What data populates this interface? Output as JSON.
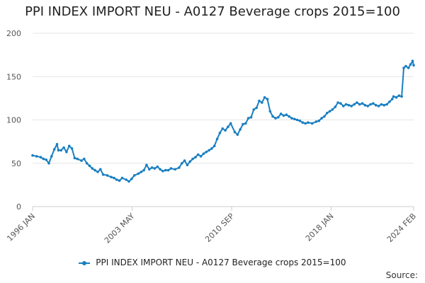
{
  "chart_data": {
    "type": "line",
    "title": "PPI INDEX IMPORT NEU - A0127 Beverage crops 2015=100",
    "xlabel": "",
    "ylabel": "",
    "ylim": [
      0,
      200
    ],
    "yticks": [
      0,
      50,
      100,
      150,
      200
    ],
    "x_start": "1996 JAN",
    "x_end": "2024 FEB",
    "xticks": [
      {
        "label": "1996 JAN",
        "t": 1996.0
      },
      {
        "label": "2003 MAY",
        "t": 2003.33
      },
      {
        "label": "2010 SEP",
        "t": 2010.67
      },
      {
        "label": "2018 JAN",
        "t": 2018.0
      },
      {
        "label": "2024 FEB",
        "t": 2024.08
      }
    ],
    "grid": true,
    "legend_position": "bottom",
    "series": [
      {
        "name": "PPI INDEX IMPORT NEU - A0127 Beverage crops 2015=100",
        "color": "#1a7fc1",
        "points": [
          [
            1996.0,
            59
          ],
          [
            1996.3,
            58
          ],
          [
            1996.6,
            57
          ],
          [
            1996.8,
            55
          ],
          [
            1997.0,
            54
          ],
          [
            1997.2,
            50
          ],
          [
            1997.4,
            58
          ],
          [
            1997.6,
            66
          ],
          [
            1997.8,
            72
          ],
          [
            1997.9,
            65
          ],
          [
            1998.1,
            65
          ],
          [
            1998.3,
            68
          ],
          [
            1998.5,
            63
          ],
          [
            1998.7,
            70
          ],
          [
            1998.9,
            67
          ],
          [
            1999.1,
            56
          ],
          [
            1999.3,
            55
          ],
          [
            1999.6,
            53
          ],
          [
            1999.8,
            55
          ],
          [
            2000.0,
            50
          ],
          [
            2000.2,
            47
          ],
          [
            2000.4,
            44
          ],
          [
            2000.6,
            42
          ],
          [
            2000.8,
            40
          ],
          [
            2001.0,
            43
          ],
          [
            2001.2,
            37
          ],
          [
            2001.5,
            36
          ],
          [
            2001.8,
            34
          ],
          [
            2002.0,
            33
          ],
          [
            2002.2,
            31
          ],
          [
            2002.4,
            30
          ],
          [
            2002.6,
            33
          ],
          [
            2002.9,
            31
          ],
          [
            2003.1,
            29
          ],
          [
            2003.3,
            32
          ],
          [
            2003.5,
            36
          ],
          [
            2003.8,
            38
          ],
          [
            2004.0,
            40
          ],
          [
            2004.2,
            42
          ],
          [
            2004.4,
            48
          ],
          [
            2004.6,
            43
          ],
          [
            2004.8,
            45
          ],
          [
            2005.0,
            44
          ],
          [
            2005.2,
            46
          ],
          [
            2005.4,
            43
          ],
          [
            2005.6,
            41
          ],
          [
            2005.8,
            42
          ],
          [
            2006.0,
            42
          ],
          [
            2006.2,
            44
          ],
          [
            2006.5,
            43
          ],
          [
            2006.8,
            45
          ],
          [
            2007.0,
            50
          ],
          [
            2007.2,
            53
          ],
          [
            2007.4,
            48
          ],
          [
            2007.6,
            52
          ],
          [
            2007.8,
            55
          ],
          [
            2008.0,
            57
          ],
          [
            2008.2,
            60
          ],
          [
            2008.4,
            58
          ],
          [
            2008.6,
            61
          ],
          [
            2008.8,
            63
          ],
          [
            2009.0,
            65
          ],
          [
            2009.2,
            67
          ],
          [
            2009.4,
            70
          ],
          [
            2009.6,
            78
          ],
          [
            2009.8,
            85
          ],
          [
            2010.0,
            90
          ],
          [
            2010.2,
            88
          ],
          [
            2010.4,
            92
          ],
          [
            2010.6,
            96
          ],
          [
            2010.9,
            86
          ],
          [
            2011.1,
            83
          ],
          [
            2011.3,
            89
          ],
          [
            2011.5,
            95
          ],
          [
            2011.7,
            96
          ],
          [
            2011.9,
            102
          ],
          [
            2012.1,
            103
          ],
          [
            2012.3,
            112
          ],
          [
            2012.5,
            114
          ],
          [
            2012.7,
            122
          ],
          [
            2012.9,
            120
          ],
          [
            2013.1,
            126
          ],
          [
            2013.3,
            124
          ],
          [
            2013.5,
            110
          ],
          [
            2013.7,
            104
          ],
          [
            2013.9,
            102
          ],
          [
            2014.1,
            103
          ],
          [
            2014.3,
            107
          ],
          [
            2014.5,
            105
          ],
          [
            2014.7,
            106
          ],
          [
            2014.9,
            104
          ],
          [
            2015.1,
            102
          ],
          [
            2015.3,
            101
          ],
          [
            2015.5,
            100
          ],
          [
            2015.7,
            99
          ],
          [
            2015.9,
            97
          ],
          [
            2016.1,
            96
          ],
          [
            2016.3,
            97
          ],
          [
            2016.6,
            96
          ],
          [
            2016.9,
            98
          ],
          [
            2017.1,
            99
          ],
          [
            2017.3,
            102
          ],
          [
            2017.5,
            104
          ],
          [
            2017.7,
            108
          ],
          [
            2017.9,
            110
          ],
          [
            2018.1,
            112
          ],
          [
            2018.3,
            115
          ],
          [
            2018.5,
            120
          ],
          [
            2018.7,
            119
          ],
          [
            2018.9,
            116
          ],
          [
            2019.1,
            118
          ],
          [
            2019.3,
            117
          ],
          [
            2019.5,
            116
          ],
          [
            2019.7,
            118
          ],
          [
            2019.9,
            120
          ],
          [
            2020.1,
            118
          ],
          [
            2020.3,
            119
          ],
          [
            2020.5,
            117
          ],
          [
            2020.7,
            116
          ],
          [
            2020.9,
            118
          ],
          [
            2021.1,
            119
          ],
          [
            2021.3,
            117
          ],
          [
            2021.5,
            116
          ],
          [
            2021.7,
            118
          ],
          [
            2021.9,
            117
          ],
          [
            2022.1,
            118
          ],
          [
            2022.3,
            121
          ],
          [
            2022.5,
            124
          ],
          [
            2022.6,
            127
          ],
          [
            2022.8,
            126
          ],
          [
            2023.0,
            128
          ],
          [
            2023.2,
            127
          ],
          [
            2023.35,
            160
          ],
          [
            2023.5,
            162
          ],
          [
            2023.7,
            160
          ],
          [
            2023.85,
            164
          ],
          [
            2024.0,
            168
          ],
          [
            2024.08,
            163
          ]
        ]
      }
    ]
  },
  "legend": {
    "label": "PPI INDEX IMPORT NEU - A0127 Beverage crops 2015=100"
  },
  "source": {
    "label": "Source:"
  }
}
